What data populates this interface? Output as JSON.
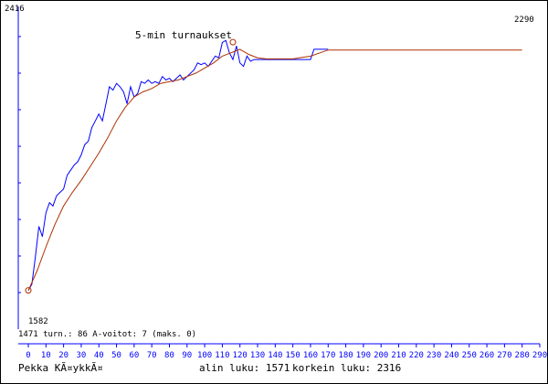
{
  "chart_data": {
    "type": "line",
    "top_value_label": "2416",
    "right_value_label": "2290",
    "bottom_value_label": "1582",
    "annotation": "5-min turnaukset",
    "stats_line": "1471 turn.: 86  A-voitot: 7   (maks. 0)",
    "xlim": [
      0,
      290
    ],
    "ylim": [
      1471,
      2416
    ],
    "x_ticks": [
      0,
      10,
      20,
      30,
      40,
      50,
      60,
      70,
      80,
      90,
      100,
      110,
      120,
      130,
      140,
      150,
      160,
      170,
      180,
      190,
      200,
      210,
      220,
      230,
      240,
      250,
      260,
      270,
      280,
      290
    ],
    "colors": {
      "raw": "#0000ff",
      "smoothed": "#b03000",
      "axis": "#0000ff",
      "markers": "#b03000"
    },
    "series": [
      {
        "key": "raw",
        "x": [
          0,
          2,
          4,
          6,
          8,
          10,
          12,
          14,
          16,
          18,
          20,
          22,
          24,
          26,
          28,
          30,
          32,
          34,
          36,
          38,
          40,
          42,
          44,
          46,
          48,
          50,
          52,
          54,
          56,
          58,
          60,
          62,
          64,
          66,
          68,
          70,
          72,
          74,
          76,
          78,
          80,
          82,
          84,
          86,
          88,
          90,
          92,
          94,
          96,
          98,
          100,
          102,
          104,
          106,
          108,
          110,
          112,
          114,
          116,
          118,
          120,
          122,
          124,
          126,
          128,
          130,
          132,
          134,
          136,
          138,
          140,
          145,
          150,
          155,
          160,
          162,
          165,
          170
        ],
        "y": [
          1582,
          1600,
          1680,
          1770,
          1740,
          1810,
          1840,
          1830,
          1860,
          1870,
          1880,
          1920,
          1935,
          1950,
          1960,
          1980,
          2010,
          2020,
          2060,
          2080,
          2100,
          2080,
          2130,
          2180,
          2170,
          2190,
          2180,
          2165,
          2130,
          2180,
          2150,
          2160,
          2195,
          2190,
          2200,
          2190,
          2195,
          2190,
          2210,
          2200,
          2205,
          2195,
          2205,
          2215,
          2200,
          2210,
          2220,
          2230,
          2250,
          2245,
          2250,
          2240,
          2255,
          2270,
          2265,
          2310,
          2316,
          2280,
          2260,
          2300,
          2250,
          2240,
          2270,
          2255,
          2260,
          2260,
          2260,
          2260,
          2260,
          2260,
          2260,
          2260,
          2260,
          2260,
          2260,
          2290,
          2290,
          2290
        ]
      },
      {
        "key": "smoothed",
        "x": [
          0,
          5,
          10,
          15,
          20,
          25,
          30,
          35,
          40,
          45,
          50,
          55,
          60,
          65,
          70,
          75,
          80,
          85,
          90,
          95,
          100,
          105,
          110,
          115,
          120,
          125,
          130,
          135,
          140,
          150,
          160,
          170,
          175,
          180,
          190,
          200,
          210,
          220,
          230,
          240,
          250,
          260,
          270,
          280
        ],
        "y": [
          1582,
          1640,
          1710,
          1775,
          1830,
          1870,
          1905,
          1945,
          1985,
          2030,
          2080,
          2120,
          2150,
          2165,
          2175,
          2190,
          2195,
          2200,
          2210,
          2220,
          2235,
          2250,
          2270,
          2280,
          2290,
          2275,
          2265,
          2262,
          2262,
          2262,
          2270,
          2288,
          2288,
          2288,
          2288,
          2288,
          2288,
          2288,
          2288,
          2288,
          2288,
          2288,
          2288,
          2288
        ]
      }
    ],
    "markers": [
      {
        "x": 0,
        "y": 1582
      },
      {
        "x": 116,
        "y": 2311
      }
    ]
  },
  "footer": {
    "author": "Pekka KÃ¤ykkÃ¤",
    "min_label": "alin luku: 1571",
    "max_label": "korkein luku: 2316"
  }
}
